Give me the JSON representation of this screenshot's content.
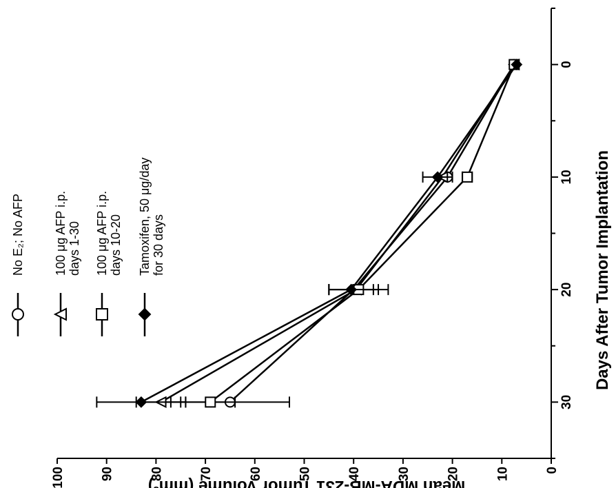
{
  "chart_data": {
    "type": "line",
    "orientation": "rotated-90-ccw",
    "xlabel": "Days After Tumor Implantation",
    "ylabel": "Mean MDA-MB-231 Tumor Volume (mm³)",
    "xlim": [
      -5,
      35
    ],
    "ylim": [
      0,
      100
    ],
    "x_ticks": [
      "0",
      "10",
      "20",
      "30"
    ],
    "y_ticks": [
      "0",
      "10",
      "20",
      "30",
      "40",
      "50",
      "60",
      "70",
      "80",
      "90",
      "100"
    ],
    "x": [
      0,
      10,
      20,
      30
    ],
    "series": [
      {
        "name": "No E₂; No AFP",
        "marker": "circle-open",
        "values": [
          7.5,
          21,
          40,
          65
        ],
        "error_low": [
          null,
          null,
          35,
          53
        ],
        "error_high": [
          null,
          null,
          45,
          77
        ]
      },
      {
        "name": "100 μg AFP i.p. days 1-30",
        "marker": "triangle-open",
        "values": [
          7.5,
          22,
          39.5,
          79
        ],
        "error_low": [
          null,
          null,
          null,
          74
        ],
        "error_high": [
          null,
          null,
          null,
          84
        ]
      },
      {
        "name": "100 μg AFP i.p. days 10-20",
        "marker": "square-open",
        "values": [
          7.5,
          17,
          39,
          69
        ],
        "error_low": [
          null,
          16,
          33,
          64
        ],
        "error_high": [
          null,
          18,
          45,
          75
        ]
      },
      {
        "name": "Tamoxifen, 50 μg/day for 30 days",
        "marker": "diamond-filled",
        "values": [
          7,
          23,
          40.5,
          83
        ],
        "error_low": [
          null,
          20,
          36,
          74
        ],
        "error_high": [
          null,
          26,
          45,
          92
        ]
      }
    ],
    "legend": {
      "position": "top-left",
      "entries": [
        {
          "lines": [
            "No E₂; No AFP"
          ]
        },
        {
          "lines": [
            "100 μg AFP i.p.",
            "days 1-30"
          ]
        },
        {
          "lines": [
            "100 μg AFP i.p.",
            "days 10-20"
          ]
        },
        {
          "lines": [
            "Tamoxifen, 50 μg/day",
            "for 30 days"
          ]
        }
      ]
    }
  }
}
